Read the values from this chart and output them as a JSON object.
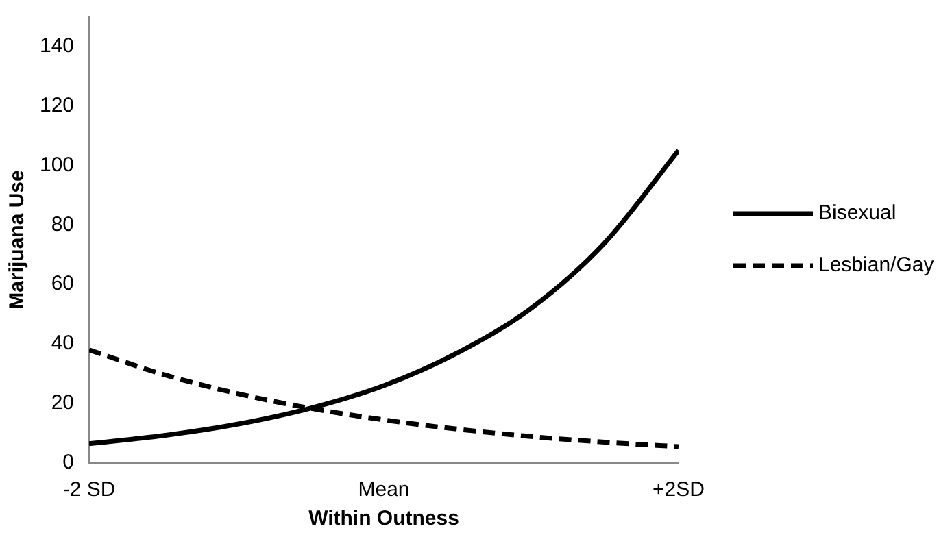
{
  "chart_data": {
    "type": "line",
    "xlabel": "Within Outness",
    "ylabel": "Marijuana Use",
    "x": [
      -2,
      -1.5,
      -1,
      -0.5,
      0,
      0.5,
      1,
      1.5,
      2
    ],
    "series": [
      {
        "name": "Bisexual",
        "color": "#000000",
        "line_style": "solid",
        "values": [
          6.5,
          9.2,
          13,
          18.4,
          26,
          37,
          52,
          74,
          105
        ]
      },
      {
        "name": "Lesbian/Gay",
        "color": "#000000",
        "line_style": "dashed",
        "values": [
          38,
          29.8,
          23.4,
          18.4,
          14.5,
          11.4,
          8.9,
          7,
          5.5
        ]
      }
    ],
    "xlim": [
      -2,
      2
    ],
    "xticks": [
      {
        "value": -2,
        "label": "-2 SD"
      },
      {
        "value": 0,
        "label": "Mean"
      },
      {
        "value": 2,
        "label": "+2SD"
      }
    ],
    "ylim": [
      0,
      150
    ],
    "yticks": [
      0,
      20,
      40,
      60,
      80,
      100,
      120,
      140
    ],
    "grid": false,
    "legend": "right",
    "marker": "none"
  }
}
